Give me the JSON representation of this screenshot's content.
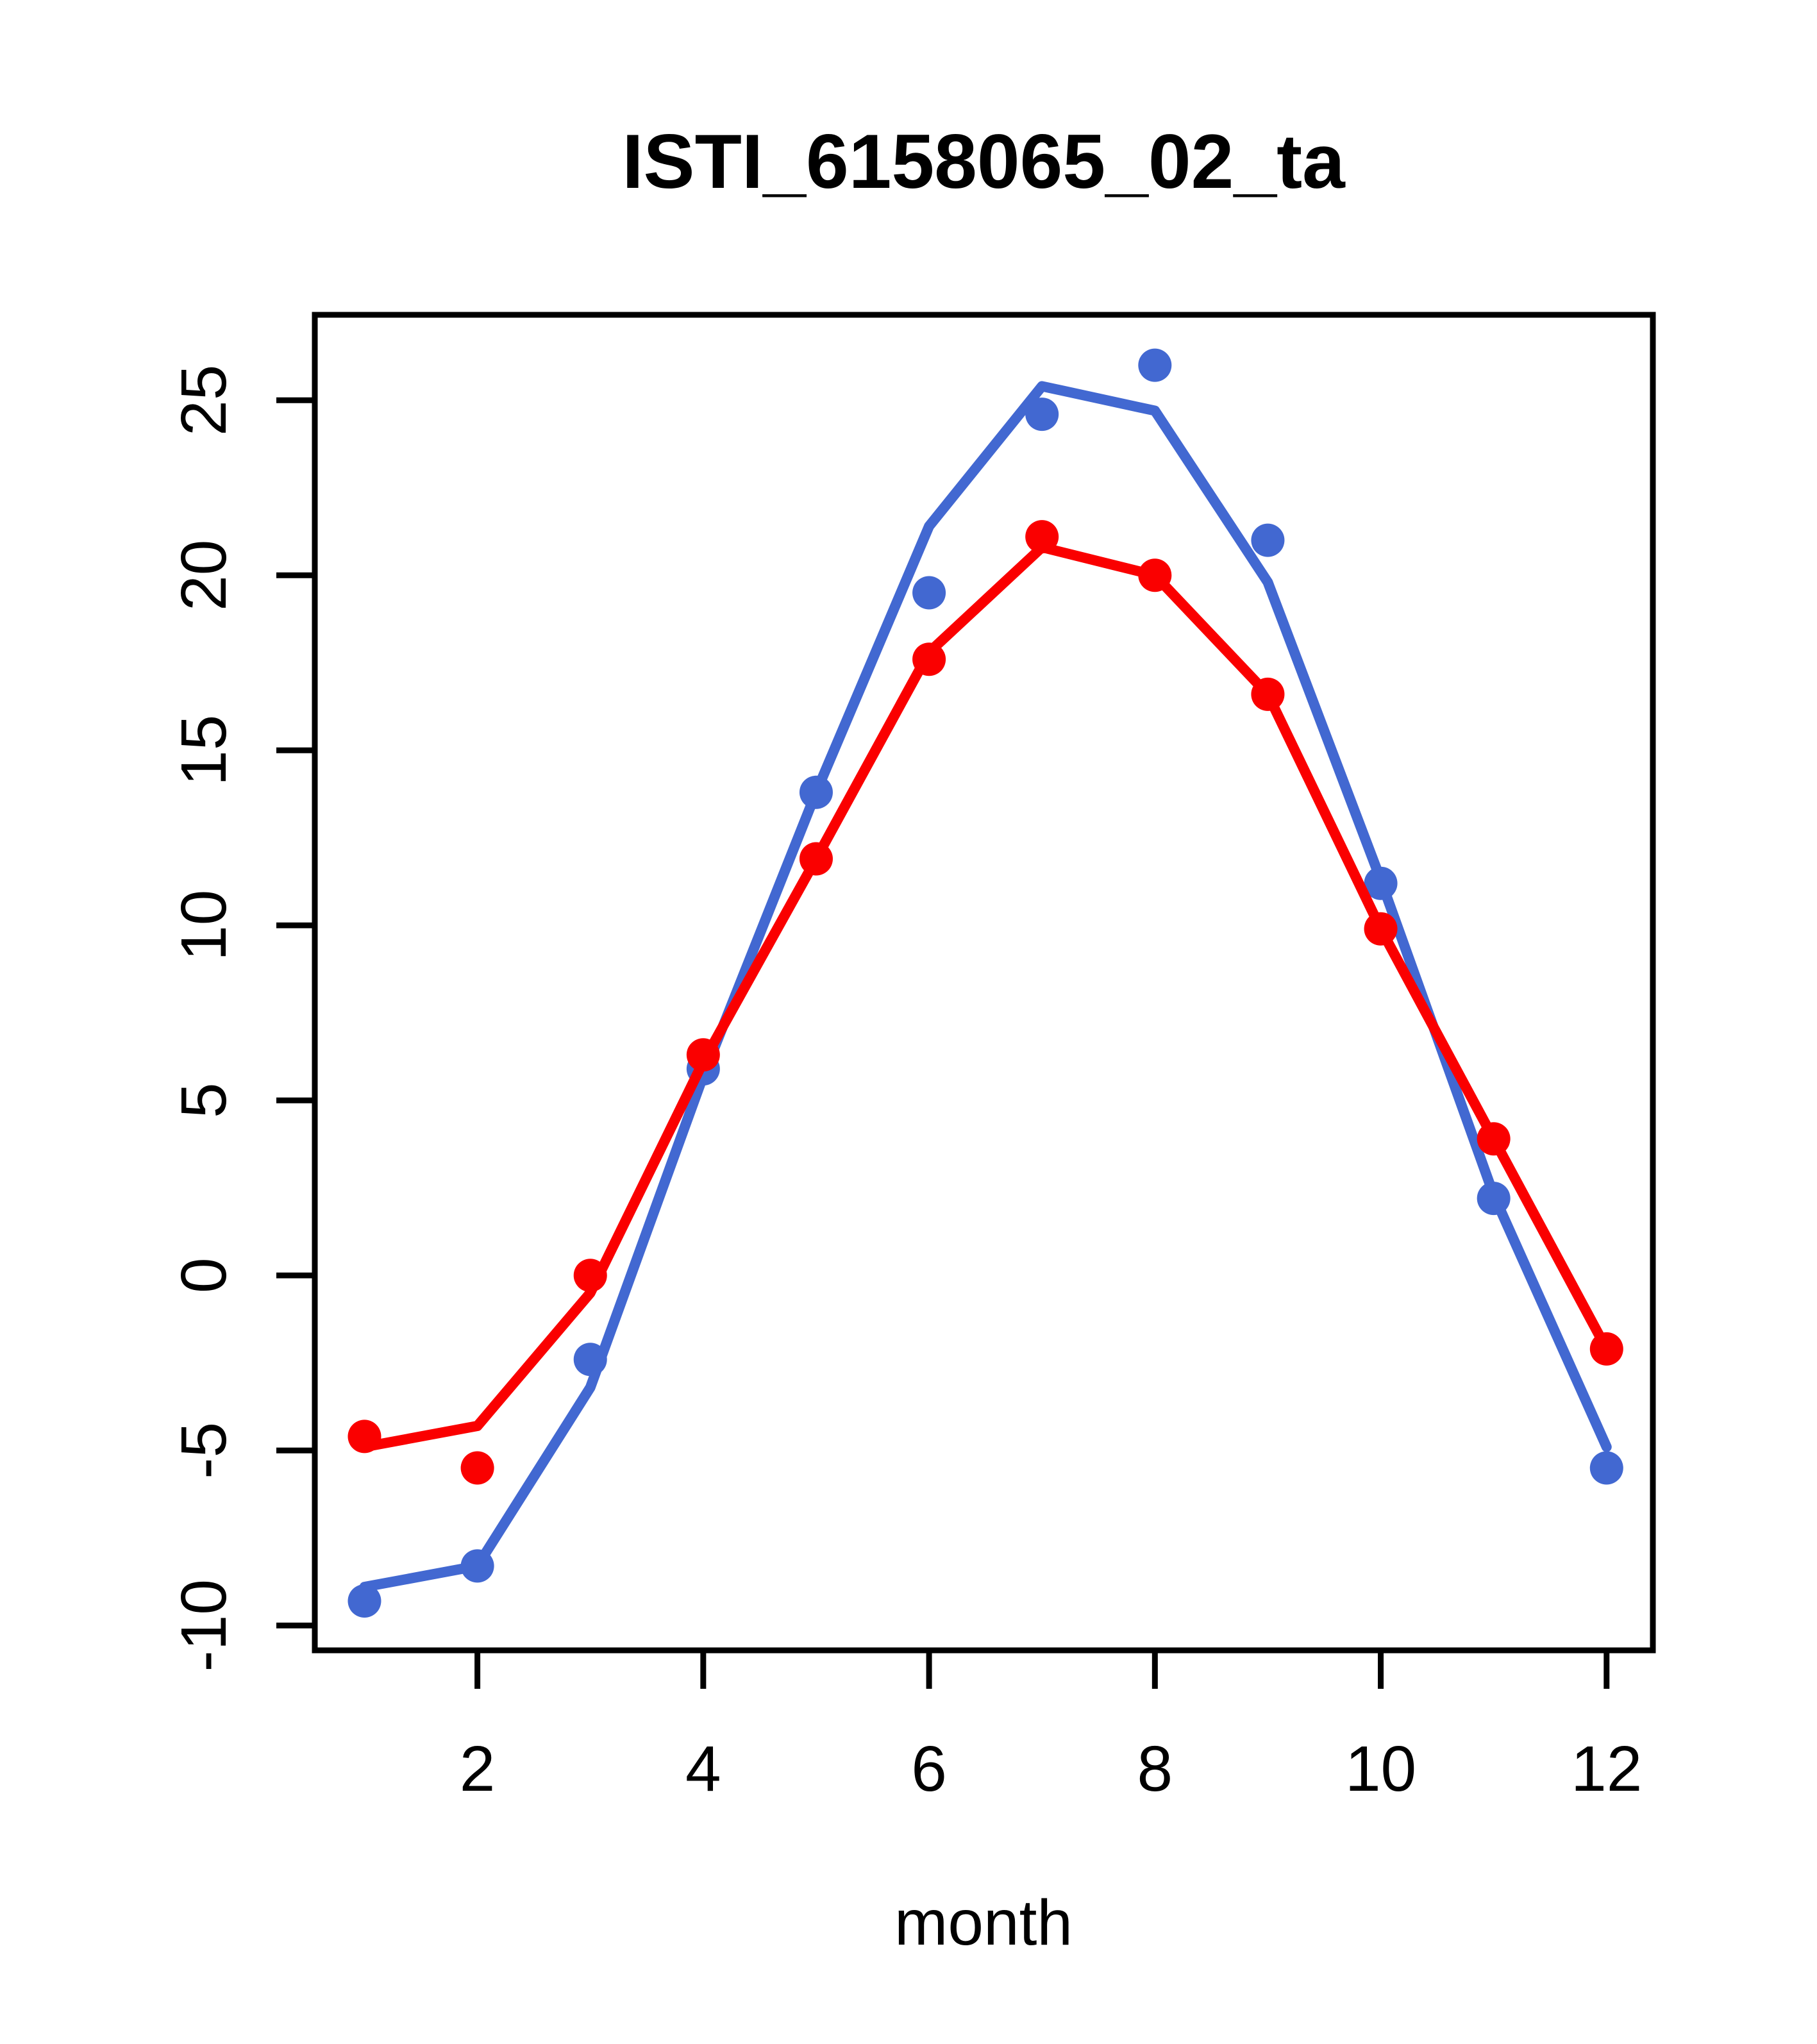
{
  "chart_data": {
    "type": "line",
    "title": "ISTI_6158065_02_ta",
    "xlabel": "month",
    "ylabel": "",
    "xlim": [
      0.56,
      12.41
    ],
    "ylim": [
      -10.71,
      27.44
    ],
    "x_ticks": [
      2,
      4,
      6,
      8,
      10,
      12
    ],
    "y_ticks": [
      -10,
      -5,
      0,
      5,
      10,
      15,
      20,
      25
    ],
    "grid": false,
    "legend": false,
    "months": [
      1,
      2,
      3,
      4,
      5,
      6,
      7,
      8,
      9,
      10,
      11,
      12
    ],
    "colors": {
      "blue": "#4268D1",
      "red": "#FA0000",
      "axis": "#000000"
    },
    "series": [
      {
        "name": "blue-fitted-line",
        "role": "line",
        "color": "#4268D1",
        "values": [
          -8.9,
          -8.3,
          -3.2,
          5.7,
          13.8,
          21.4,
          25.4,
          24.7,
          19.8,
          11.3,
          2.3,
          -4.9
        ]
      },
      {
        "name": "blue-monthly-points",
        "role": "points",
        "color": "#4268D1",
        "values": [
          -9.3,
          -8.3,
          -2.4,
          5.9,
          13.8,
          19.5,
          24.6,
          26.0,
          21.0,
          11.2,
          2.2,
          -5.5
        ]
      },
      {
        "name": "red-fitted-line",
        "role": "line",
        "color": "#FA0000",
        "values": [
          -4.9,
          -4.3,
          -0.5,
          6.1,
          11.9,
          17.8,
          20.8,
          20.0,
          16.6,
          9.9,
          3.9,
          -2.1
        ]
      },
      {
        "name": "red-monthly-points",
        "role": "points",
        "color": "#FA0000",
        "values": [
          -4.6,
          -5.5,
          0.0,
          6.3,
          11.9,
          17.6,
          21.1,
          20.0,
          16.6,
          9.9,
          3.9,
          -2.1
        ]
      }
    ]
  }
}
